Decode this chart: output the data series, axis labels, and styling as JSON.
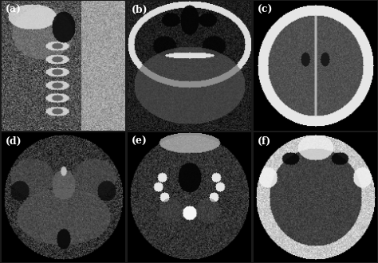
{
  "background_color": "#1a1a1a",
  "grid_rows": 2,
  "grid_cols": 3,
  "labels": [
    "(a)",
    "(b)",
    "(c)",
    "(d)",
    "(e)",
    "(f)"
  ],
  "label_color": "#ffffff",
  "label_fontsize": 9,
  "panel_bg": "#000000"
}
